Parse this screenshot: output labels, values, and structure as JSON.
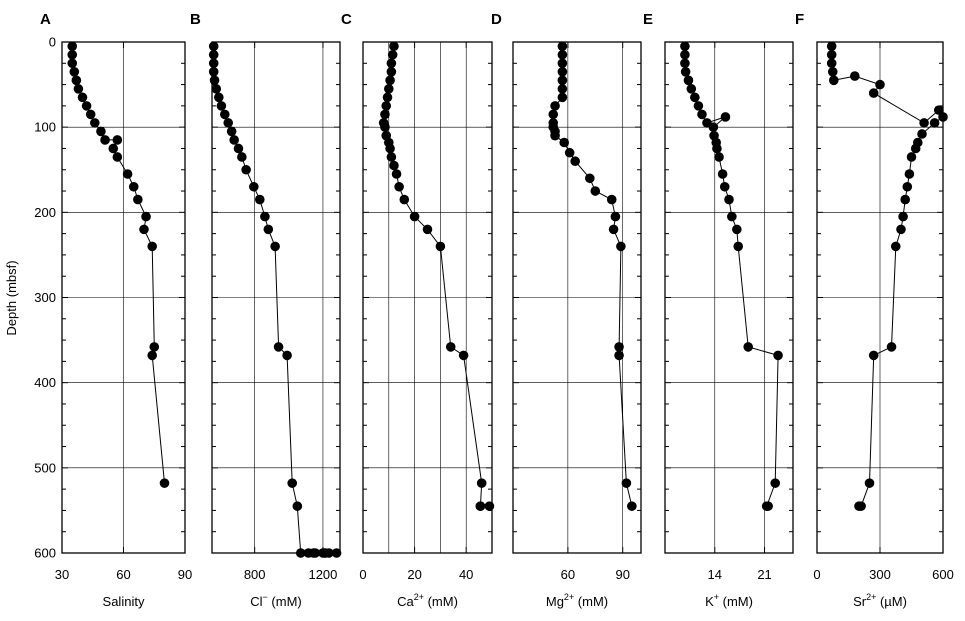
{
  "figure": {
    "ylabel": "Depth (mbsf)",
    "y_ticks": [
      "0",
      "100",
      "200",
      "300",
      "400",
      "500",
      "600"
    ]
  },
  "chart_data": [
    {
      "type": "scatter",
      "panel": "A",
      "xlabel_parts": [
        "Salinity"
      ],
      "xlim": [
        30,
        90
      ],
      "x_grid": [
        60
      ],
      "x_ticks": [
        30,
        60,
        90
      ],
      "x_tick_labels": [
        "30",
        "60",
        "90"
      ],
      "ylim": [
        0,
        600
      ],
      "grid": true,
      "x": [
        35,
        35,
        35,
        36,
        37,
        38,
        40,
        42,
        44,
        46,
        49,
        51,
        57,
        55,
        57,
        62,
        65,
        67,
        71,
        70,
        74,
        75,
        74,
        80
      ],
      "y": [
        5,
        15,
        25,
        35,
        45,
        55,
        65,
        75,
        85,
        95,
        105,
        115,
        115,
        125,
        135,
        155,
        170,
        185,
        205,
        220,
        240,
        358,
        368,
        518
      ]
    },
    {
      "type": "scatter",
      "panel": "B",
      "xlabel_parts": [
        "Cl",
        "−",
        " (mM)"
      ],
      "xlim": [
        550,
        1300
      ],
      "x_grid": [
        800,
        1200
      ],
      "x_ticks": [
        800,
        1200
      ],
      "x_tick_labels": [
        "800",
        "1200"
      ],
      "ylim": [
        0,
        600
      ],
      "grid": true,
      "x": [
        560,
        560,
        560,
        560,
        565,
        575,
        590,
        605,
        625,
        645,
        665,
        680,
        705,
        725,
        750,
        795,
        830,
        860,
        880,
        920,
        940,
        990,
        1020,
        1050,
        1070,
        1115,
        1155,
        1145,
        1215,
        1210,
        1200,
        1280,
        1235
      ],
      "y": [
        5,
        15,
        25,
        35,
        45,
        55,
        65,
        75,
        85,
        95,
        105,
        115,
        125,
        135,
        150,
        170,
        185,
        205,
        220,
        240,
        358,
        368,
        518,
        545,
        600,
        600,
        600,
        600,
        600,
        600,
        600,
        600,
        600
      ]
    },
    {
      "type": "scatter",
      "panel": "C",
      "xlabel_parts": [
        "Ca",
        "2+",
        " (mM)"
      ],
      "xlim": [
        0,
        50
      ],
      "x_grid": [
        10,
        20,
        30,
        40
      ],
      "x_ticks": [
        0,
        20,
        40
      ],
      "x_tick_labels": [
        "0",
        "20",
        "40"
      ],
      "ylim": [
        0,
        600
      ],
      "grid": true,
      "x": [
        12,
        11.5,
        11,
        11,
        10.5,
        10,
        9.5,
        9,
        8.5,
        8,
        8.5,
        9,
        10,
        10.5,
        11,
        12,
        13,
        14,
        16,
        20,
        25,
        30,
        34,
        39,
        46,
        45.5,
        49,
        45.5
      ],
      "y": [
        5,
        15,
        25,
        35,
        45,
        55,
        65,
        75,
        85,
        95,
        100,
        110,
        118,
        125,
        135,
        145,
        155,
        170,
        185,
        205,
        220,
        240,
        358,
        368,
        518,
        545,
        545,
        545
      ]
    },
    {
      "type": "scatter",
      "panel": "D",
      "xlabel_parts": [
        "Mg",
        "2+",
        " (mM)"
      ],
      "xlim": [
        30,
        100
      ],
      "x_grid": [
        60,
        90
      ],
      "x_ticks": [
        60,
        90
      ],
      "x_tick_labels": [
        "60",
        "90"
      ],
      "ylim": [
        0,
        600
      ],
      "grid": true,
      "x": [
        57,
        57,
        57,
        57,
        57,
        57,
        57,
        53,
        52,
        52,
        52,
        53,
        53,
        58,
        61,
        64,
        72,
        75,
        84,
        86,
        85,
        89,
        88,
        88,
        92,
        95
      ],
      "y": [
        5,
        15,
        25,
        35,
        45,
        55,
        65,
        75,
        85,
        95,
        100,
        105,
        110,
        118,
        130,
        140,
        160,
        175,
        185,
        205,
        220,
        240,
        358,
        368,
        518,
        545
      ]
    },
    {
      "type": "scatter",
      "panel": "E",
      "xlabel_parts": [
        "K",
        "+",
        " (mM)"
      ],
      "xlim": [
        7,
        25
      ],
      "x_grid": [
        14,
        21
      ],
      "x_ticks": [
        14,
        21
      ],
      "x_tick_labels": [
        "14",
        "21"
      ],
      "ylim": [
        0,
        600
      ],
      "grid": true,
      "x": [
        9.8,
        9.8,
        9.8,
        9.9,
        10.3,
        10.7,
        11.2,
        11.7,
        12.2,
        12.9,
        15.5,
        13.8,
        13.9,
        14.2,
        14.3,
        14.6,
        15.1,
        15.4,
        16.0,
        16.4,
        17.1,
        17.3,
        18.7,
        22.9,
        22.5,
        21.3,
        21.5
      ],
      "y": [
        5,
        15,
        25,
        35,
        45,
        55,
        65,
        75,
        85,
        95,
        88,
        100,
        110,
        118,
        125,
        135,
        155,
        170,
        185,
        205,
        220,
        240,
        358,
        368,
        518,
        545,
        545
      ]
    },
    {
      "type": "scatter",
      "panel": "F",
      "xlabel_parts": [
        "Sr",
        "2+",
        " (µM)"
      ],
      "xlim": [
        0,
        600
      ],
      "x_grid": [
        300
      ],
      "x_ticks": [
        0,
        300,
        600
      ],
      "x_tick_labels": [
        "0",
        "300",
        "600"
      ],
      "ylim": [
        0,
        600
      ],
      "grid": true,
      "x": [
        70,
        70,
        70,
        75,
        80,
        180,
        300,
        270,
        510,
        580,
        600,
        560,
        500,
        480,
        470,
        450,
        440,
        430,
        420,
        410,
        400,
        375,
        355,
        270,
        250,
        210,
        200
      ],
      "y": [
        5,
        15,
        25,
        35,
        45,
        40,
        50,
        60,
        95,
        80,
        88,
        95,
        108,
        118,
        125,
        135,
        155,
        170,
        185,
        205,
        220,
        240,
        358,
        368,
        518,
        545,
        545
      ]
    }
  ]
}
